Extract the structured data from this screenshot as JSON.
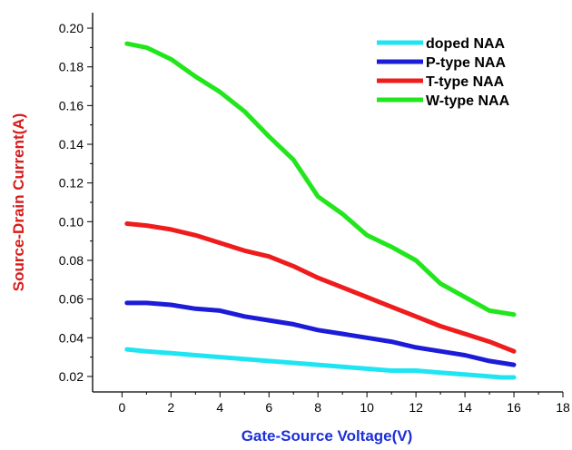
{
  "chart_data": {
    "type": "line",
    "xlabel": "Gate-Source Voltage(V)",
    "ylabel": "Source-Drain Current(A)",
    "xlim": [
      -1.2,
      18
    ],
    "ylim": [
      0.012,
      0.208
    ],
    "x_ticks": [
      "0",
      "2",
      "4",
      "6",
      "8",
      "10",
      "12",
      "14",
      "16",
      "18"
    ],
    "y_ticks": [
      "0.02",
      "0.04",
      "0.06",
      "0.08",
      "0.10",
      "0.12",
      "0.14",
      "0.16",
      "0.18",
      "0.20"
    ],
    "legend_position": "top-right",
    "grid": false,
    "colors": {
      "xlabel": "#1c2fd8",
      "ylabel": "#d81c1c"
    },
    "series": [
      {
        "name": "doped NAA",
        "color": "#1fe5f2",
        "x": [
          0.2,
          1,
          2,
          3,
          4,
          5,
          6,
          7,
          8,
          9,
          10,
          11,
          12,
          13,
          14,
          15,
          15.5,
          16
        ],
        "y": [
          0.034,
          0.033,
          0.032,
          0.031,
          0.03,
          0.029,
          0.028,
          0.027,
          0.026,
          0.025,
          0.024,
          0.023,
          0.023,
          0.022,
          0.021,
          0.02,
          0.0195,
          0.0195
        ]
      },
      {
        "name": "P-type NAA",
        "color": "#1c1cd8",
        "x": [
          0.2,
          1,
          2,
          3,
          4,
          5,
          6,
          7,
          8,
          9,
          10,
          11,
          12,
          13,
          14,
          15,
          16
        ],
        "y": [
          0.058,
          0.058,
          0.057,
          0.055,
          0.054,
          0.051,
          0.049,
          0.047,
          0.044,
          0.042,
          0.04,
          0.038,
          0.035,
          0.033,
          0.031,
          0.028,
          0.026
        ]
      },
      {
        "name": "T-type NAA",
        "color": "#ee1c1c",
        "x": [
          0.2,
          1,
          2,
          3,
          4,
          5,
          6,
          7,
          8,
          9,
          10,
          11,
          12,
          13,
          14,
          15,
          16
        ],
        "y": [
          0.099,
          0.098,
          0.096,
          0.093,
          0.089,
          0.085,
          0.082,
          0.077,
          0.071,
          0.066,
          0.061,
          0.056,
          0.051,
          0.046,
          0.042,
          0.038,
          0.033
        ]
      },
      {
        "name": "W-type NAA",
        "color": "#22e61c",
        "x": [
          0.2,
          1,
          2,
          3,
          4,
          5,
          6,
          7,
          8,
          9,
          10,
          11,
          12,
          13,
          14,
          15,
          16
        ],
        "y": [
          0.192,
          0.19,
          0.184,
          0.175,
          0.167,
          0.157,
          0.144,
          0.132,
          0.113,
          0.104,
          0.093,
          0.087,
          0.08,
          0.068,
          0.061,
          0.054,
          0.052
        ]
      }
    ]
  }
}
